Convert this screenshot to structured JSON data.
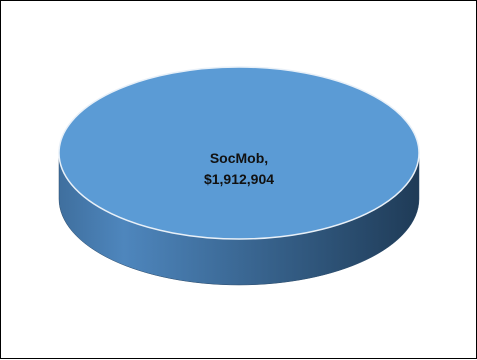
{
  "chart_data": {
    "type": "pie",
    "style": "3d",
    "legend": "none",
    "slices": [
      {
        "label": "SocMob,",
        "value_label": "$1,912,904",
        "value": 1912904,
        "color": "#5b9bd5"
      }
    ]
  }
}
